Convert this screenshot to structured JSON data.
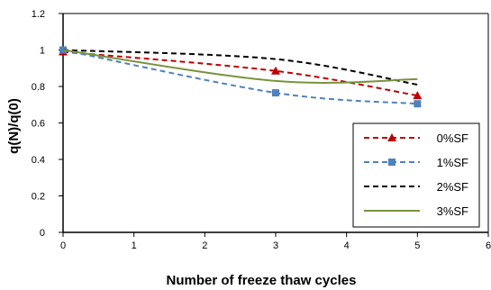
{
  "chart_data": {
    "type": "line",
    "title": "",
    "xlabel": "Number of freeze thaw cycles",
    "ylabel": "q(N)/q(0)",
    "xlim": [
      0,
      6
    ],
    "ylim": [
      0,
      1.2
    ],
    "xticks": [
      "0",
      "1",
      "2",
      "3",
      "4",
      "5",
      "6"
    ],
    "yticks": [
      "0",
      "0.2",
      "0.4",
      "0.6",
      "0.8",
      "1",
      "1.2"
    ],
    "grid": false,
    "legend_position": "bottom-right",
    "series": [
      {
        "name": "0%SF",
        "x": [
          0,
          3,
          5
        ],
        "values": [
          0.99,
          0.885,
          0.75
        ],
        "color": "#c00000",
        "dash": "dashed",
        "marker": "triangle"
      },
      {
        "name": "1%SF",
        "x": [
          0,
          3,
          5
        ],
        "values": [
          1.0,
          0.765,
          0.705
        ],
        "color": "#4f81bd",
        "dash": "dashed",
        "marker": "square"
      },
      {
        "name": "2%SF",
        "x": [
          0,
          3,
          5
        ],
        "values": [
          1.0,
          0.95,
          0.81
        ],
        "color": "#000000",
        "dash": "dashed",
        "marker": "none"
      },
      {
        "name": "3%SF",
        "x": [
          0,
          3,
          5
        ],
        "values": [
          1.0,
          0.83,
          0.84
        ],
        "color": "#77933c",
        "dash": "solid",
        "marker": "none"
      }
    ]
  }
}
